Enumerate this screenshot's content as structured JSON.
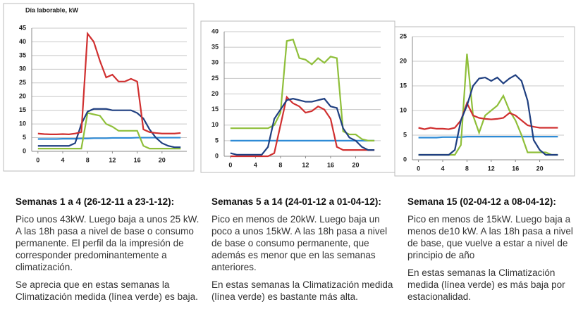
{
  "chart_data": [
    {
      "type": "line",
      "title": "Día laborable, kW",
      "x": [
        0,
        1,
        2,
        3,
        4,
        5,
        6,
        7,
        8,
        9,
        10,
        11,
        12,
        13,
        14,
        15,
        16,
        17,
        18,
        19,
        20,
        21,
        22,
        23
      ],
      "xlim": [
        -1,
        24
      ],
      "xticks": [
        0,
        4,
        8,
        12,
        16,
        20
      ],
      "ylim": [
        0,
        45
      ],
      "yticks": [
        0,
        5,
        10,
        15,
        20,
        25,
        30,
        35,
        40,
        45
      ],
      "grid": true,
      "series": [
        {
          "color": "#2e8bd6",
          "values": [
            4.5,
            4.5,
            4.5,
            4.5,
            4.6,
            4.6,
            4.6,
            4.7,
            4.7,
            4.8,
            4.8,
            4.8,
            4.9,
            4.9,
            4.9,
            4.9,
            5,
            5,
            5,
            5,
            5,
            5,
            5,
            5
          ]
        },
        {
          "color": "#8fbf3a",
          "values": [
            1,
            1,
            1,
            1,
            1,
            1,
            1,
            1,
            14,
            13.5,
            13,
            10,
            9,
            7.5,
            7.5,
            7.5,
            7.5,
            2,
            1,
            1,
            1,
            1,
            1,
            1
          ]
        },
        {
          "color": "#1f3f80",
          "values": [
            2,
            2,
            2,
            2,
            2,
            2,
            3,
            10,
            14.5,
            15.5,
            15.5,
            15.5,
            15,
            15,
            15,
            15,
            14,
            12,
            8,
            5,
            3,
            2,
            1.5,
            1.5
          ]
        },
        {
          "color": "#d03030",
          "values": [
            6.5,
            6.3,
            6.2,
            6.2,
            6.3,
            6.2,
            6.5,
            7,
            43,
            40,
            33,
            27,
            28,
            25.5,
            25.5,
            26.5,
            25.5,
            8,
            7,
            6.7,
            6.5,
            6.5,
            6.5,
            6.7
          ]
        }
      ]
    },
    {
      "type": "line",
      "x": [
        0,
        1,
        2,
        3,
        4,
        5,
        6,
        7,
        8,
        9,
        10,
        11,
        12,
        13,
        14,
        15,
        16,
        17,
        18,
        19,
        20,
        21,
        22,
        23
      ],
      "xlim": [
        -1,
        24
      ],
      "xticks": [
        0,
        4,
        8,
        12,
        16,
        20
      ],
      "ylim": [
        0,
        40
      ],
      "yticks": [
        0,
        5,
        10,
        15,
        20,
        25,
        30,
        35,
        40
      ],
      "grid": true,
      "series": [
        {
          "color": "#2e8bd6",
          "values": [
            5,
            5,
            5,
            5,
            5,
            5,
            5,
            5,
            5,
            5,
            5,
            5,
            5,
            5,
            5,
            5,
            5,
            5,
            5,
            5,
            5,
            5,
            5,
            5
          ]
        },
        {
          "color": "#8fbf3a",
          "values": [
            9,
            9,
            9,
            9,
            9,
            9,
            9,
            10,
            14,
            37,
            37.5,
            31.5,
            31,
            29.5,
            31.5,
            30,
            32,
            31.5,
            8,
            7,
            7,
            5.5,
            5,
            5
          ]
        },
        {
          "color": "#d03030",
          "values": [
            0,
            0,
            0,
            0,
            0,
            0,
            0,
            1,
            10,
            19,
            17,
            16,
            14,
            14.5,
            16,
            15,
            12,
            3,
            2,
            2,
            2,
            2,
            2,
            2
          ]
        },
        {
          "color": "#1f3f80",
          "values": [
            1,
            0.5,
            0.5,
            0.5,
            0.5,
            0.5,
            3,
            12,
            15,
            18,
            18.5,
            18,
            17.5,
            17.5,
            18,
            18.5,
            16,
            15.5,
            9,
            6,
            5,
            3,
            2,
            2
          ]
        }
      ]
    },
    {
      "type": "line",
      "x": [
        0,
        1,
        2,
        3,
        4,
        5,
        6,
        7,
        8,
        9,
        10,
        11,
        12,
        13,
        14,
        15,
        16,
        17,
        18,
        19,
        20,
        21,
        22,
        23
      ],
      "xlim": [
        -1,
        24
      ],
      "xticks": [
        0,
        4,
        8,
        12,
        16,
        20
      ],
      "ylim": [
        0,
        25
      ],
      "yticks": [
        0,
        5,
        10,
        15,
        20,
        25
      ],
      "grid": true,
      "series": [
        {
          "color": "#2e8bd6",
          "values": [
            4.5,
            4.5,
            4.5,
            4.5,
            4.6,
            4.6,
            4.6,
            4.6,
            4.7,
            4.7,
            4.7,
            4.7,
            4.7,
            4.7,
            4.7,
            4.7,
            4.7,
            4.7,
            4.7,
            4.7,
            4.7,
            4.7,
            4.7,
            4.7
          ]
        },
        {
          "color": "#8fbf3a",
          "values": [
            1,
            1,
            1,
            1,
            1,
            1,
            1,
            3,
            21.5,
            9,
            5.5,
            9,
            10,
            11,
            13,
            10,
            8,
            5,
            1.5,
            1.5,
            1.5,
            1.5,
            1,
            1
          ]
        },
        {
          "color": "#d03030",
          "values": [
            6.5,
            6.2,
            6.5,
            6.3,
            6.3,
            6.2,
            6.5,
            8,
            11.5,
            9,
            8.5,
            8.3,
            8.2,
            8.3,
            8.5,
            9.5,
            9,
            8,
            7,
            6.7,
            6.5,
            6.5,
            6.5,
            6.5
          ]
        },
        {
          "color": "#1f3f80",
          "values": [
            1,
            1,
            1,
            1,
            1,
            1,
            2,
            8,
            11,
            15,
            16.5,
            16.7,
            16,
            16.7,
            15.5,
            16.5,
            17.2,
            16,
            12,
            4,
            2,
            1,
            1,
            1
          ]
        }
      ]
    }
  ],
  "captions": [
    {
      "heading": "Semanas  1 a 4 (26-12-11 a 23-1-12):",
      "paragraphs": [
        "Pico unos 43kW. Luego baja a unos 25 kW. A las 18h pasa a nivel de base o consumo permanente. El perfil da la impresión de corresponder predominantemente a climatización.",
        "Se aprecia que en estas semanas la Climatización medida (línea verde) es baja."
      ]
    },
    {
      "heading": "Semanas  5 a 14 (24-01-12 a 01-04-12):",
      "paragraphs": [
        "Pico  en menos de 20kW. Luego baja un poco a unos 15kW. A las 18h pasa a nivel  de base o consumo permanente, que además es menor que en las semanas anteriores.",
        "En estas semanas la Climatización medida (línea verde) es bastante más alta."
      ]
    },
    {
      "heading": "Semana  15  (02-04-12 a 08-04-12):",
      "paragraphs": [
        "Pico  en menos de 15kW. Luego baja a menos de10 kW. A las 18h pasa a nivel de base, que vuelve a estar a nivel de principio de año",
        "En estas semanas la Climatización medida (línea verde) es más baja por estacionalidad."
      ]
    }
  ]
}
